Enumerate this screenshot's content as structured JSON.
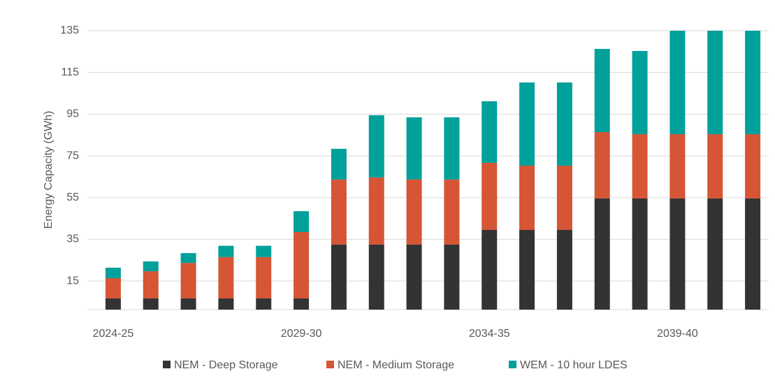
{
  "chart_data": {
    "type": "stacked_bar",
    "y_label": "Energy Capacity (GWh)",
    "categories": [
      "2024-25",
      null,
      null,
      null,
      null,
      "2029-30",
      null,
      null,
      null,
      null,
      "2034-35",
      null,
      null,
      null,
      null,
      "2039-40",
      null,
      null
    ],
    "series": [
      {
        "name": "NEM - Deep Storage",
        "color": "#333333",
        "values": [
          5.4,
          5.4,
          5.4,
          5.4,
          5.4,
          5.4,
          31.2,
          31.2,
          31.2,
          31.2,
          38.2,
          38.2,
          38.2,
          53.3,
          53.3,
          53.3,
          53.3,
          53.3
        ]
      },
      {
        "name": "NEM - Medium Storage",
        "color": "#d55535",
        "values": [
          9.7,
          13,
          17,
          19.8,
          19.8,
          31.8,
          31.2,
          32.2,
          31.2,
          31.2,
          32.2,
          30.8,
          30.8,
          31.8,
          30.8,
          30.8,
          30.8,
          30.8
        ]
      },
      {
        "name": "WEM - 10 hour LDES",
        "color": "#00a09b",
        "values": [
          5,
          4.7,
          4.7,
          5.4,
          5.4,
          10,
          14.7,
          29.8,
          29.8,
          29.8,
          29.5,
          39.9,
          39.9,
          39.9,
          39.9,
          49.6,
          49.6,
          49.6
        ]
      }
    ],
    "ylim": [
      1.3,
      135
    ],
    "yticks": [
      15,
      35,
      55,
      75,
      95,
      115,
      135
    ],
    "grid": true,
    "legend": "bottom"
  }
}
